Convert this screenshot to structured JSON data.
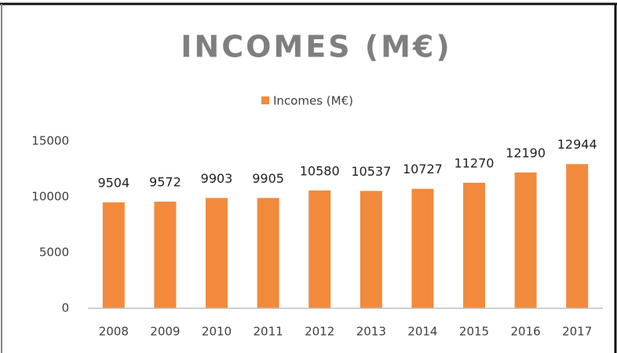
{
  "chart_data": {
    "type": "bar",
    "title": "INCOMES (M€)",
    "categories": [
      "2008",
      "2009",
      "2010",
      "2011",
      "2012",
      "2013",
      "2014",
      "2015",
      "2016",
      "2017"
    ],
    "series": [
      {
        "name": "Incomes (M€)",
        "color": "#f28a3c",
        "values": [
          9504,
          9572,
          9903,
          9905,
          10580,
          10537,
          10727,
          11270,
          12190,
          12944
        ]
      }
    ],
    "ylim": [
      0,
      15000
    ],
    "yticks": [
      0,
      5000,
      10000,
      15000
    ],
    "grid": false,
    "legend": "top"
  }
}
